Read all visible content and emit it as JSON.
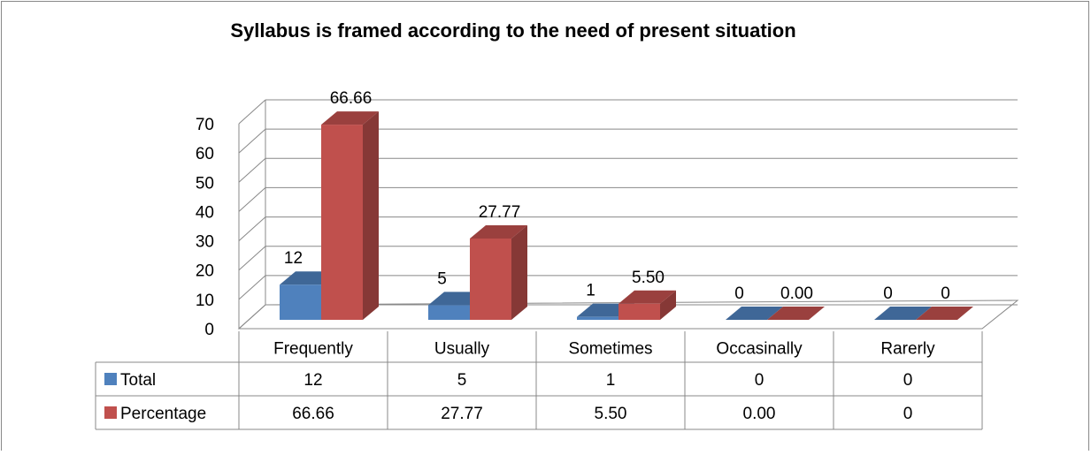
{
  "chart_data": {
    "type": "bar3d",
    "title": "Syllabus is framed according to the need of present situation",
    "categories": [
      "Frequently",
      "Usually",
      "Sometimes",
      "Occasinally",
      "Rarerly"
    ],
    "series": [
      {
        "name": "Total",
        "color": "#4f81bd",
        "values": [
          12,
          5,
          1,
          0,
          0
        ]
      },
      {
        "name": "Percentage",
        "color": "#c0504d",
        "values": [
          66.66,
          27.77,
          5.5,
          0,
          0
        ],
        "value_labels": [
          "66.66",
          "27.77",
          "5.50",
          "0.00",
          "0"
        ]
      }
    ],
    "ylim": [
      0,
      70
    ],
    "yticks": [
      0,
      10,
      20,
      30,
      40,
      50,
      60,
      70
    ],
    "grid": true,
    "legend": "table"
  }
}
